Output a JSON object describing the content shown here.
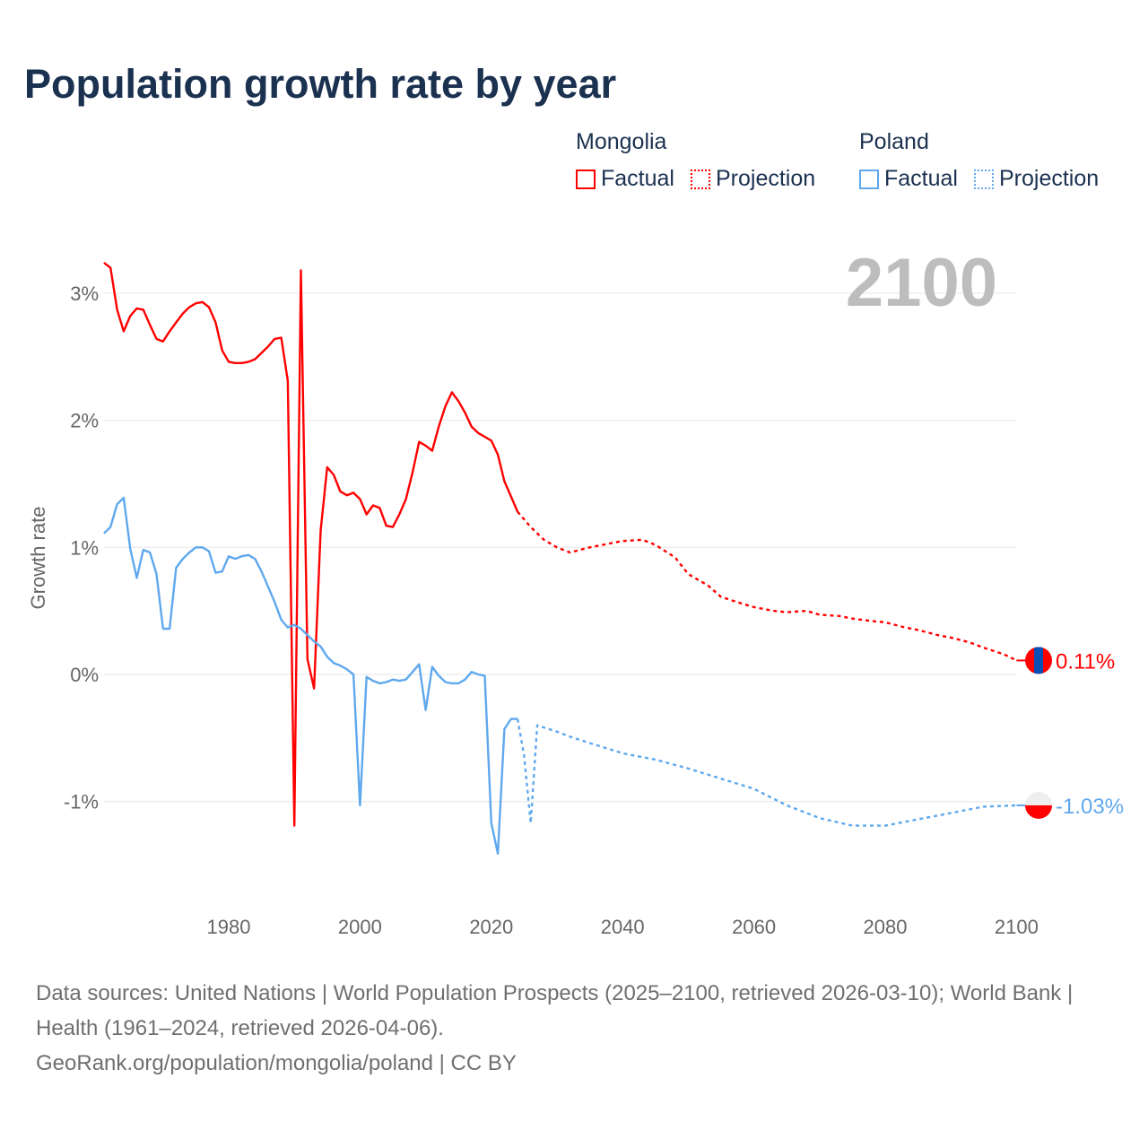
{
  "title": "Population growth rate by year",
  "legend": {
    "groups": [
      {
        "name": "Mongolia",
        "factual": "Factual",
        "projection": "Projection",
        "color": "#ff0000"
      },
      {
        "name": "Poland",
        "factual": "Factual",
        "projection": "Projection",
        "color": "#5fa8ee"
      }
    ]
  },
  "current_year": "2100",
  "footer": {
    "sources": "Data sources: United Nations | World Population Prospects (2025–2100, retrieved 2026-03-10); World Bank | Health (1961–2024, retrieved 2026-04-06).",
    "credit": "GeoRank.org/population/mongolia/poland | CC BY"
  },
  "chart_data": {
    "type": "line",
    "title": "Population growth rate by year",
    "xlabel": "",
    "ylabel": "Growth rate",
    "xlim": [
      1961,
      2100
    ],
    "ylim": [
      -1.8,
      3.4
    ],
    "x_ticks": [
      1980,
      2000,
      2020,
      2040,
      2060,
      2080,
      2100
    ],
    "x_tick_labels": [
      "1980",
      "2000",
      "2020",
      "2040",
      "2060",
      "2080",
      "2100"
    ],
    "y_ticks": [
      -1,
      0,
      1,
      2,
      3
    ],
    "y_tick_labels": [
      "-1%",
      "0%",
      "1%",
      "2%",
      "3%"
    ],
    "grid": true,
    "legend_position": "top-right",
    "series": [
      {
        "name": "Mongolia Factual",
        "color": "#ff0000",
        "style": "solid",
        "x": [
          1961,
          1962,
          1963,
          1964,
          1965,
          1966,
          1967,
          1968,
          1969,
          1970,
          1971,
          1972,
          1973,
          1974,
          1975,
          1976,
          1977,
          1978,
          1979,
          1980,
          1981,
          1982,
          1983,
          1984,
          1985,
          1986,
          1987,
          1988,
          1989,
          1990,
          1991,
          1992,
          1993,
          1994,
          1995,
          1996,
          1997,
          1998,
          1999,
          2000,
          2001,
          2002,
          2003,
          2004,
          2005,
          2006,
          2007,
          2008,
          2009,
          2010,
          2011,
          2012,
          2013,
          2014,
          2015,
          2016,
          2017,
          2018,
          2019,
          2020,
          2021,
          2022,
          2023,
          2024
        ],
        "values": [
          3.24,
          3.2,
          2.87,
          2.7,
          2.82,
          2.88,
          2.87,
          2.75,
          2.64,
          2.62,
          2.7,
          2.77,
          2.84,
          2.89,
          2.92,
          2.93,
          2.89,
          2.77,
          2.55,
          2.46,
          2.45,
          2.45,
          2.46,
          2.48,
          2.53,
          2.58,
          2.64,
          2.65,
          2.31,
          -1.19,
          3.18,
          0.12,
          -0.11,
          1.13,
          1.63,
          1.57,
          1.44,
          1.41,
          1.43,
          1.38,
          1.26,
          1.33,
          1.31,
          1.17,
          1.16,
          1.26,
          1.38,
          1.59,
          1.83,
          1.8,
          1.76,
          1.95,
          2.11,
          2.22,
          2.15,
          2.06,
          1.95,
          1.9,
          1.87,
          1.84,
          1.73,
          1.52,
          1.4,
          1.28
        ]
      },
      {
        "name": "Mongolia Projection",
        "color": "#ff0000",
        "style": "dotted",
        "x": [
          2024,
          2026,
          2028,
          2030,
          2032,
          2035,
          2038,
          2040,
          2043,
          2045,
          2048,
          2050,
          2053,
          2055,
          2058,
          2060,
          2063,
          2065,
          2068,
          2070,
          2073,
          2075,
          2078,
          2080,
          2083,
          2085,
          2088,
          2090,
          2093,
          2095,
          2098,
          2100
        ],
        "values": [
          1.28,
          1.16,
          1.06,
          1.0,
          0.96,
          1.0,
          1.03,
          1.05,
          1.06,
          1.02,
          0.92,
          0.79,
          0.7,
          0.61,
          0.56,
          0.53,
          0.5,
          0.49,
          0.5,
          0.47,
          0.46,
          0.44,
          0.42,
          0.41,
          0.37,
          0.35,
          0.31,
          0.29,
          0.25,
          0.21,
          0.16,
          0.11
        ]
      },
      {
        "name": "Poland Factual",
        "color": "#5fa8ee",
        "style": "solid",
        "x": [
          1961,
          1962,
          1963,
          1964,
          1965,
          1966,
          1967,
          1968,
          1969,
          1970,
          1971,
          1972,
          1973,
          1974,
          1975,
          1976,
          1977,
          1978,
          1979,
          1980,
          1981,
          1982,
          1983,
          1984,
          1985,
          1986,
          1987,
          1988,
          1989,
          1990,
          1991,
          1992,
          1993,
          1994,
          1995,
          1996,
          1997,
          1998,
          1999,
          2000,
          2001,
          2002,
          2003,
          2004,
          2005,
          2006,
          2007,
          2008,
          2009,
          2010,
          2011,
          2012,
          2013,
          2014,
          2015,
          2016,
          2017,
          2018,
          2019,
          2020,
          2021,
          2022,
          2023,
          2024
        ],
        "values": [
          1.11,
          1.16,
          1.34,
          1.39,
          0.99,
          0.76,
          0.98,
          0.96,
          0.79,
          0.36,
          0.36,
          0.84,
          0.91,
          0.96,
          1.0,
          1.0,
          0.97,
          0.8,
          0.81,
          0.93,
          0.91,
          0.93,
          0.94,
          0.91,
          0.81,
          0.69,
          0.57,
          0.43,
          0.37,
          0.39,
          0.36,
          0.31,
          0.26,
          0.22,
          0.14,
          0.09,
          0.07,
          0.04,
          0.0,
          -1.03,
          -0.02,
          -0.05,
          -0.07,
          -0.06,
          -0.04,
          -0.05,
          -0.04,
          0.02,
          0.08,
          -0.28,
          0.06,
          -0.01,
          -0.06,
          -0.07,
          -0.07,
          -0.04,
          0.02,
          0.0,
          -0.01,
          -1.17,
          -1.41,
          -0.43,
          -0.35,
          -0.35
        ]
      },
      {
        "name": "Poland Projection",
        "color": "#5fa8ee",
        "style": "dotted",
        "x": [
          2024,
          2025,
          2026,
          2027,
          2030,
          2032,
          2035,
          2040,
          2045,
          2050,
          2055,
          2060,
          2065,
          2070,
          2075,
          2080,
          2085,
          2090,
          2095,
          2100
        ],
        "values": [
          -0.35,
          -0.64,
          -1.17,
          -0.4,
          -0.45,
          -0.49,
          -0.54,
          -0.62,
          -0.67,
          -0.74,
          -0.82,
          -0.9,
          -1.03,
          -1.13,
          -1.19,
          -1.19,
          -1.14,
          -1.09,
          -1.04,
          -1.03
        ]
      }
    ],
    "end_labels": [
      {
        "series": "Mongolia",
        "year": 2100,
        "value": 0.11,
        "label": "0.11%"
      },
      {
        "series": "Poland",
        "year": 2100,
        "value": -1.03,
        "label": "-1.03%"
      }
    ]
  }
}
